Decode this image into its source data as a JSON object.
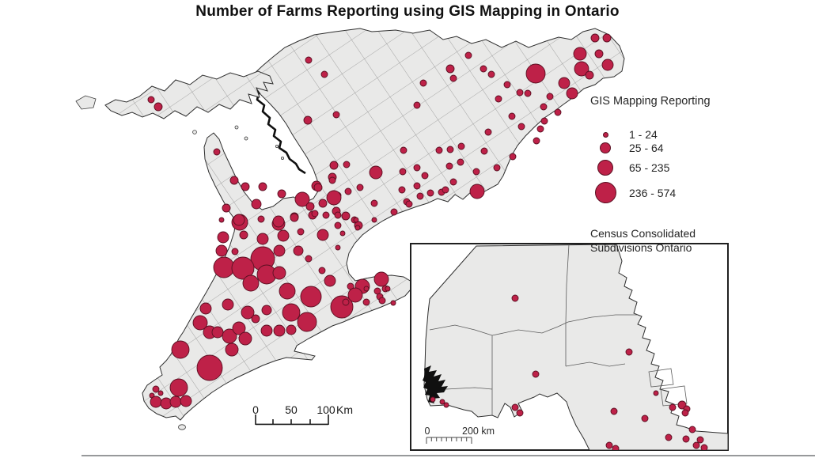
{
  "title": "Number of Farms Reporting using GIS Mapping in Ontario",
  "legend": {
    "title": "GIS Mapping Reporting",
    "classes": [
      {
        "label": "1 - 24",
        "r": 3.5
      },
      {
        "label": "25 - 64",
        "r": 7
      },
      {
        "label": "65 - 235",
        "r": 10
      },
      {
        "label": "236 - 574",
        "r": 13.5
      }
    ],
    "footer_line1": "Census Consolidated",
    "footer_line2": "Subdivisions Ontario"
  },
  "scale_bar_main": {
    "tick_labels": [
      "0",
      "50",
      "100"
    ],
    "unit": "Km"
  },
  "scale_bar_inset": {
    "start_label": "0",
    "end_label": "200 km"
  },
  "colors": {
    "symbol_fill": "#be2148",
    "symbol_stroke": "#5a1022",
    "land_fill": "#e9e9e8",
    "boundary_line": "#6a6a6a",
    "shoreline": "#2e2e2e",
    "inset_frame": "#1f1f1f",
    "bottom_rule": "#97999b"
  },
  "main_map": {
    "symbols": [
      [
        191,
        126,
        4
      ],
      [
        200,
        135,
        5
      ],
      [
        274,
        192,
        4
      ],
      [
        296,
        228,
        5
      ],
      [
        310,
        236,
        5
      ],
      [
        332,
        236,
        5
      ],
      [
        286,
        263,
        5
      ],
      [
        324,
        258,
        6
      ],
      [
        356,
        245,
        5
      ],
      [
        382,
        252,
        9
      ],
      [
        303,
        281,
        10
      ],
      [
        352,
        283,
        8
      ],
      [
        392,
        261,
        5
      ],
      [
        395,
        272,
        5
      ],
      [
        372,
        274,
        5
      ],
      [
        390,
        76,
        4
      ],
      [
        410,
        94,
        4
      ],
      [
        389,
        152,
        5
      ],
      [
        592,
        70,
        4
      ],
      [
        569,
        87,
        5
      ],
      [
        611,
        87,
        4
      ],
      [
        621,
        94,
        4
      ],
      [
        573,
        99,
        4
      ],
      [
        535,
        105,
        4
      ],
      [
        677,
        93,
        12
      ],
      [
        733,
        68,
        8
      ],
      [
        735,
        87,
        9
      ],
      [
        713,
        105,
        7
      ],
      [
        723,
        118,
        7
      ],
      [
        641,
        107,
        4
      ],
      [
        630,
        125,
        4
      ],
      [
        527,
        133,
        4
      ],
      [
        425,
        145,
        4
      ],
      [
        657,
        117,
        4
      ],
      [
        667,
        118,
        4
      ],
      [
        695,
        122,
        4
      ],
      [
        687,
        135,
        4
      ],
      [
        705,
        142,
        4
      ],
      [
        647,
        147,
        4
      ],
      [
        659,
        160,
        4
      ],
      [
        683,
        163,
        4
      ],
      [
        688,
        153,
        4
      ],
      [
        617,
        167,
        4
      ],
      [
        678,
        178,
        4
      ],
      [
        752,
        48,
        5
      ],
      [
        767,
        48,
        5
      ],
      [
        757,
        68,
        5
      ],
      [
        768,
        82,
        7
      ],
      [
        745,
        95,
        5
      ],
      [
        510,
        190,
        4
      ],
      [
        555,
        190,
        4
      ],
      [
        569,
        189,
        4
      ],
      [
        583,
        185,
        4
      ],
      [
        612,
        191,
        4
      ],
      [
        648,
        198,
        4
      ],
      [
        438,
        208,
        4
      ],
      [
        475,
        218,
        8
      ],
      [
        527,
        212,
        4
      ],
      [
        537,
        222,
        4
      ],
      [
        509,
        217,
        4
      ],
      [
        602,
        217,
        4
      ],
      [
        628,
        212,
        4
      ],
      [
        422,
        209,
        5
      ],
      [
        420,
        224,
        5
      ],
      [
        400,
        235,
        6
      ],
      [
        582,
        205,
        4
      ],
      [
        568,
        210,
        4
      ],
      [
        440,
        242,
        4
      ],
      [
        455,
        237,
        4
      ],
      [
        427,
        247,
        4
      ],
      [
        473,
        257,
        4
      ],
      [
        514,
        255,
        4
      ],
      [
        527,
        235,
        4
      ],
      [
        531,
        248,
        4
      ],
      [
        544,
        244,
        4
      ],
      [
        558,
        243,
        4
      ],
      [
        573,
        230,
        4
      ],
      [
        603,
        242,
        9
      ],
      [
        420,
        228,
        4
      ],
      [
        402,
        237,
        5
      ],
      [
        422,
        250,
        9
      ],
      [
        408,
        257,
        5
      ],
      [
        425,
        267,
        5
      ],
      [
        412,
        272,
        4
      ],
      [
        437,
        273,
        5
      ],
      [
        453,
        285,
        5
      ],
      [
        427,
        285,
        4
      ],
      [
        448,
        278,
        4
      ],
      [
        498,
        268,
        4
      ],
      [
        508,
        240,
        4
      ],
      [
        517,
        258,
        4
      ],
      [
        563,
        240,
        4
      ],
      [
        302,
        278,
        7
      ],
      [
        330,
        277,
        4
      ],
      [
        352,
        280,
        7
      ],
      [
        372,
        275,
        5
      ],
      [
        398,
        270,
        4
      ],
      [
        427,
        272,
        4
      ],
      [
        450,
        278,
        3
      ],
      [
        473,
        278,
        3
      ],
      [
        280,
        278,
        3
      ],
      [
        282,
        300,
        7
      ],
      [
        308,
        297,
        5
      ],
      [
        332,
        302,
        7
      ],
      [
        358,
        298,
        7
      ],
      [
        380,
        293,
        4
      ],
      [
        408,
        297,
        7
      ],
      [
        433,
        295,
        3
      ],
      [
        452,
        288,
        3
      ],
      [
        280,
        317,
        7
      ],
      [
        297,
        318,
        4
      ],
      [
        353,
        317,
        7
      ],
      [
        377,
        317,
        6
      ],
      [
        390,
        327,
        4
      ],
      [
        427,
        313,
        3
      ],
      [
        407,
        342,
        4
      ],
      [
        332,
        327,
        15
      ],
      [
        283,
        338,
        13
      ],
      [
        307,
        339,
        14
      ],
      [
        337,
        347,
        12
      ],
      [
        317,
        358,
        10
      ],
      [
        353,
        345,
        8
      ],
      [
        363,
        368,
        10
      ],
      [
        393,
        375,
        13
      ],
      [
        432,
        388,
        14
      ],
      [
        368,
        395,
        11
      ],
      [
        388,
        407,
        12
      ],
      [
        260,
        390,
        7
      ],
      [
        288,
        385,
        7
      ],
      [
        313,
        395,
        8
      ],
      [
        323,
        403,
        5
      ],
      [
        337,
        392,
        6
      ],
      [
        253,
        408,
        9
      ],
      [
        265,
        420,
        8
      ],
      [
        275,
        420,
        7
      ],
      [
        290,
        425,
        9
      ],
      [
        302,
        415,
        8
      ],
      [
        293,
        442,
        8
      ],
      [
        310,
        428,
        8
      ],
      [
        337,
        418,
        7
      ],
      [
        353,
        418,
        7
      ],
      [
        368,
        417,
        6
      ],
      [
        228,
        442,
        11
      ],
      [
        265,
        465,
        16
      ],
      [
        226,
        490,
        11
      ],
      [
        197,
        492,
        4
      ],
      [
        203,
        497,
        3
      ],
      [
        192,
        500,
        3
      ],
      [
        197,
        508,
        7
      ],
      [
        210,
        510,
        7
      ],
      [
        222,
        508,
        7
      ],
      [
        235,
        507,
        7
      ],
      [
        417,
        355,
        7
      ],
      [
        443,
        362,
        4
      ],
      [
        458,
        362,
        9
      ],
      [
        449,
        373,
        9
      ],
      [
        482,
        353,
        9
      ],
      [
        463,
        382,
        4
      ],
      [
        477,
        368,
        4
      ],
      [
        487,
        365,
        4
      ],
      [
        480,
        375,
        4
      ],
      [
        437,
        382,
        4
      ],
      [
        483,
        380,
        4
      ],
      [
        490,
        365,
        3
      ],
      [
        497,
        383,
        3
      ],
      [
        463,
        365,
        3
      ]
    ]
  },
  "inset_map": {
    "symbols": [
      [
        651,
        377,
        4
      ],
      [
        795,
        445,
        4
      ],
      [
        677,
        473,
        4
      ],
      [
        829,
        497,
        3
      ],
      [
        850,
        515,
        4
      ],
      [
        862,
        512,
        5
      ],
      [
        868,
        517,
        4
      ],
      [
        866,
        522,
        4
      ],
      [
        776,
        520,
        4
      ],
      [
        815,
        529,
        4
      ],
      [
        875,
        543,
        4
      ],
      [
        845,
        553,
        4
      ],
      [
        867,
        555,
        4
      ],
      [
        880,
        563,
        4
      ],
      [
        770,
        563,
        4
      ],
      [
        778,
        567,
        4
      ],
      [
        547,
        505,
        3
      ],
      [
        559,
        508,
        3
      ],
      [
        564,
        512,
        3
      ],
      [
        651,
        515,
        4
      ],
      [
        657,
        522,
        4
      ],
      [
        885,
        556,
        4
      ],
      [
        890,
        566,
        4
      ]
    ]
  }
}
